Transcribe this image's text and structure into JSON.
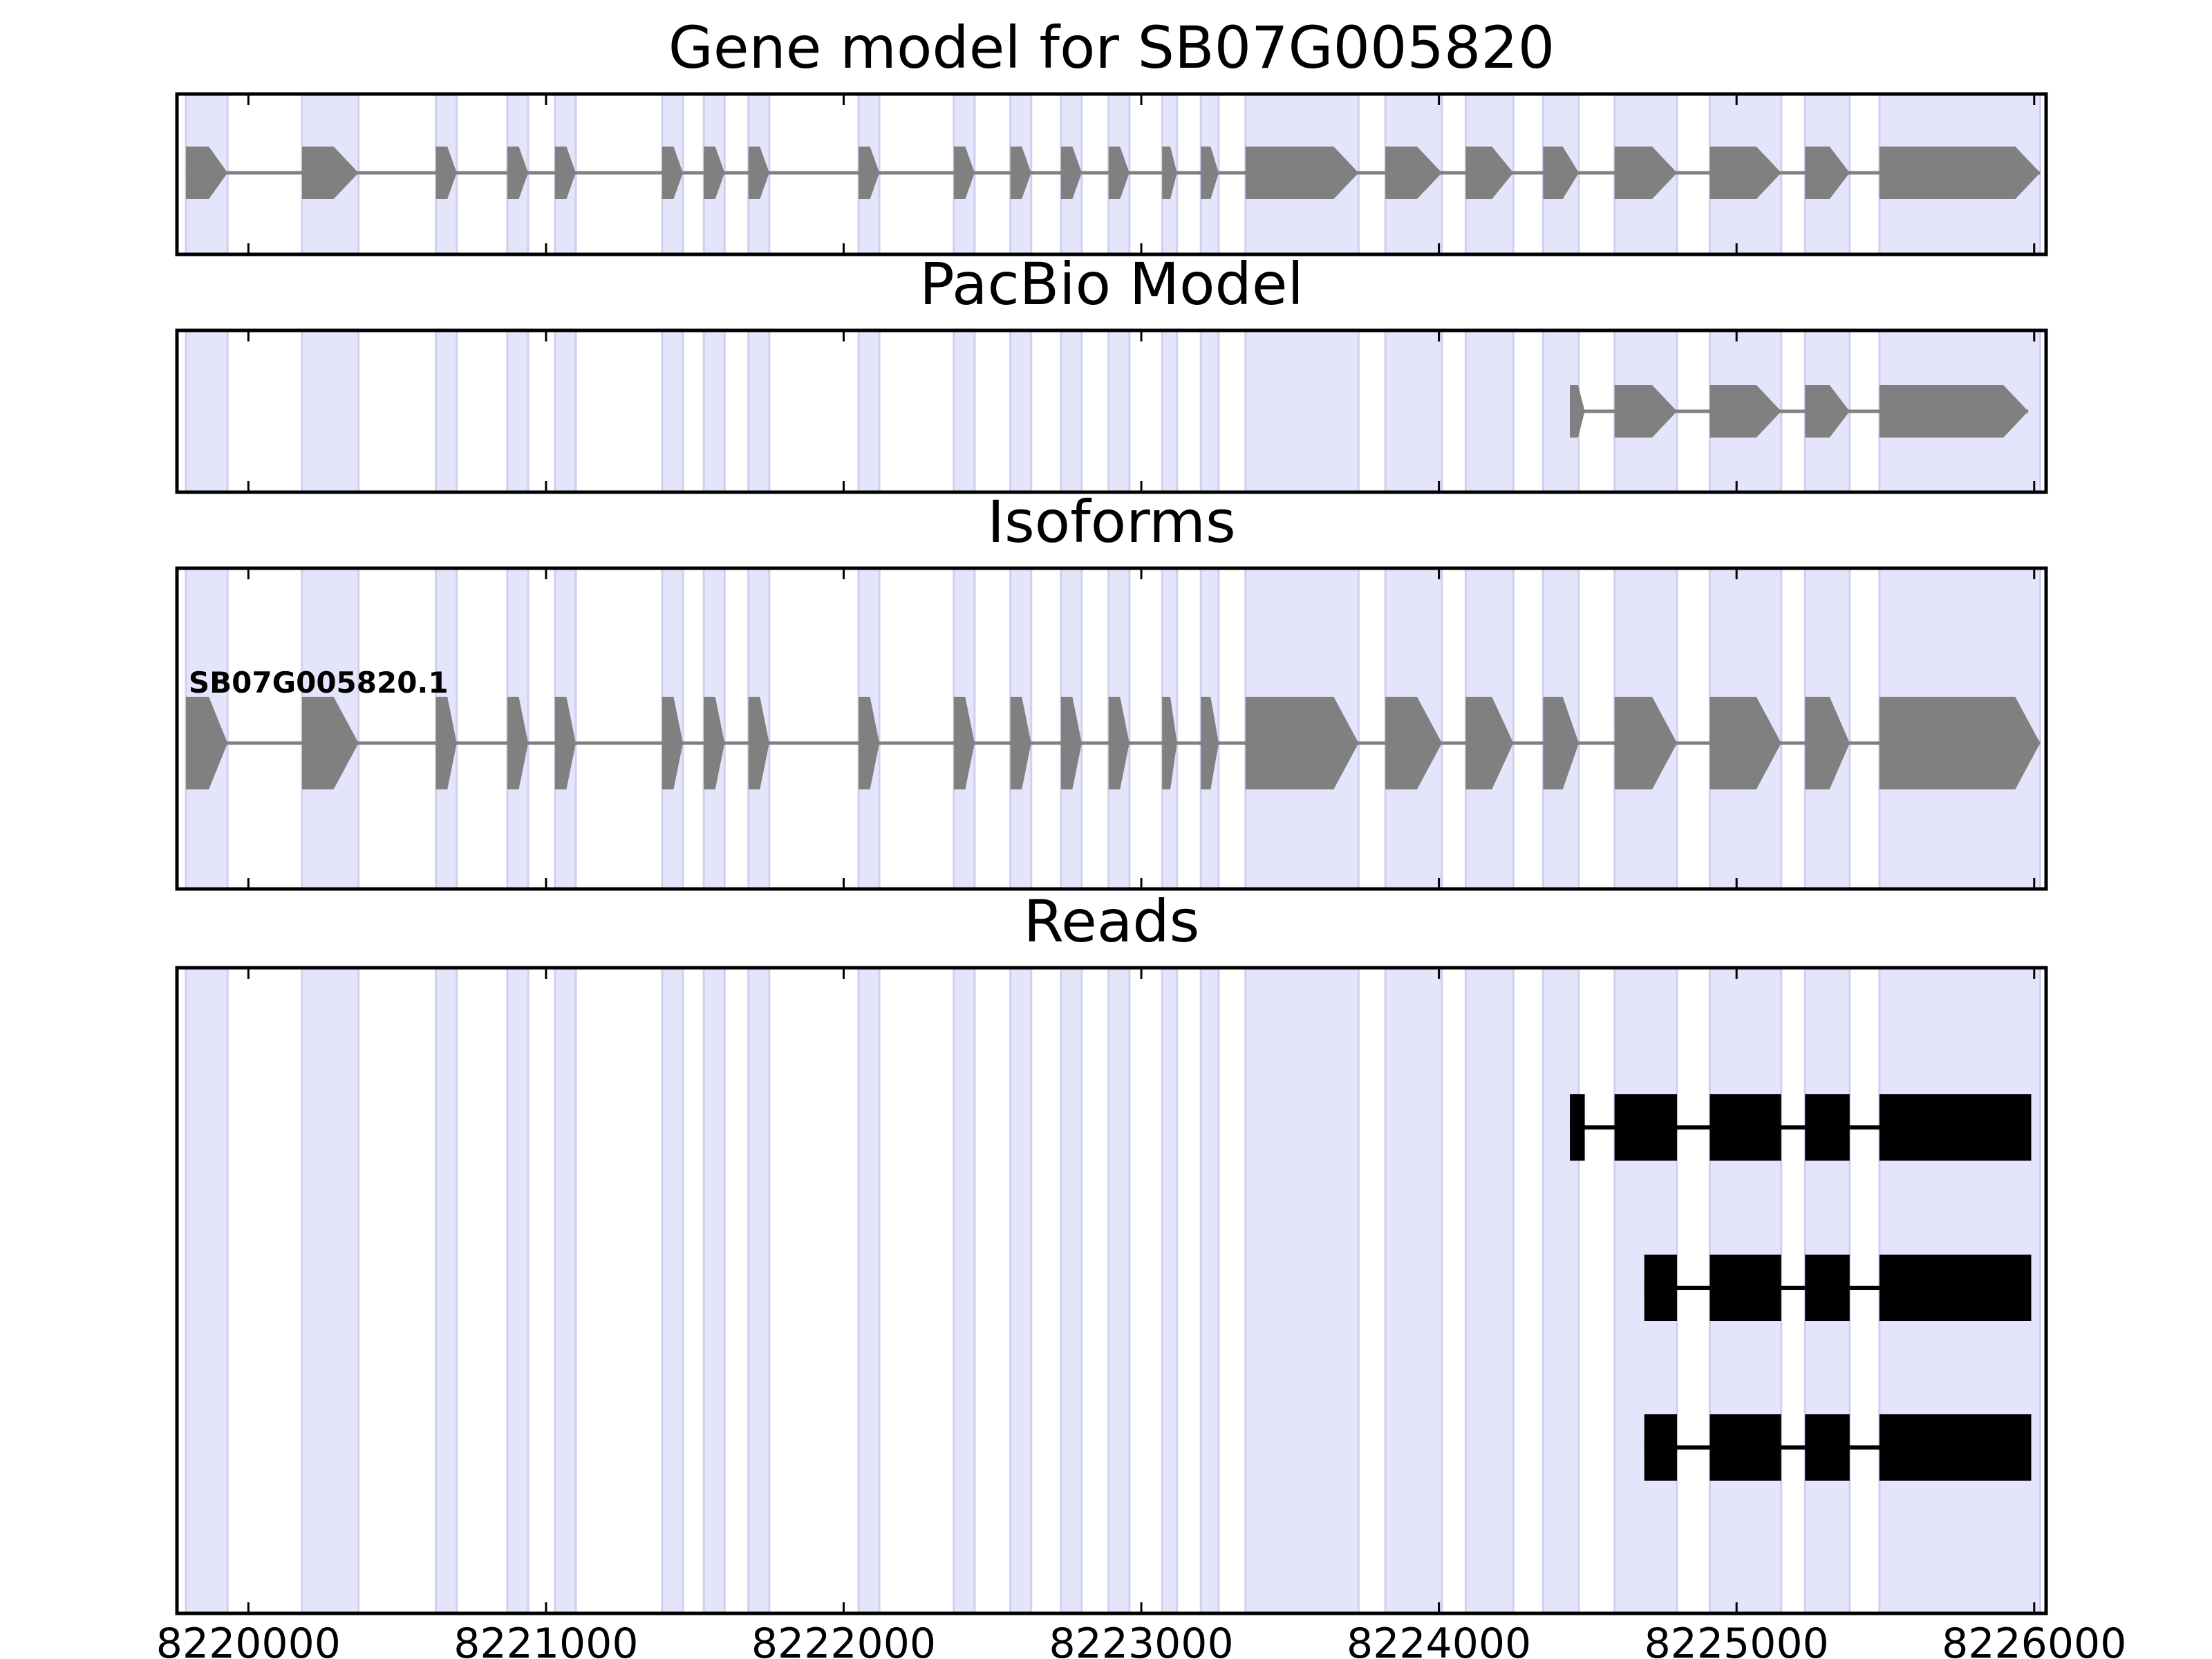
{
  "chart_data": {
    "type": "gene-model-tracks",
    "xlim": [
      8219760,
      8226040
    ],
    "x_ticks": [
      8220000,
      8221000,
      8222000,
      8223000,
      8224000,
      8225000,
      8226000
    ],
    "x_tick_labels": [
      "8220000",
      "8221000",
      "8222000",
      "8223000",
      "8224000",
      "8225000",
      "8226000"
    ],
    "colors": {
      "band": "#e4e4fb",
      "band_edge": "#cfd0f0",
      "feature": "#808080",
      "read": "#000000",
      "line": "#808080",
      "axis": "#000000"
    },
    "exon_bands": [
      [
        8219790,
        8219930
      ],
      [
        8220180,
        8220370
      ],
      [
        8220630,
        8220700
      ],
      [
        8220870,
        8220940
      ],
      [
        8221030,
        8221100
      ],
      [
        8221390,
        8221460
      ],
      [
        8221530,
        8221600
      ],
      [
        8221680,
        8221750
      ],
      [
        8222050,
        8222120
      ],
      [
        8222370,
        8222440
      ],
      [
        8222560,
        8222630
      ],
      [
        8222730,
        8222800
      ],
      [
        8222890,
        8222960
      ],
      [
        8223070,
        8223120
      ],
      [
        8223200,
        8223260
      ],
      [
        8223350,
        8223730
      ],
      [
        8223820,
        8224010
      ],
      [
        8224090,
        8224250
      ],
      [
        8224350,
        8224470
      ],
      [
        8224590,
        8224800
      ],
      [
        8224910,
        8225150
      ],
      [
        8225230,
        8225380
      ],
      [
        8225480,
        8226020
      ]
    ],
    "panels": [
      {
        "title": "Gene model for SB07G005820",
        "kind": "gene",
        "features": [
          {
            "label": "",
            "exons": [
              [
                8219790,
                8219930
              ],
              [
                8220180,
                8220370
              ],
              [
                8220630,
                8220700
              ],
              [
                8220870,
                8220940
              ],
              [
                8221030,
                8221100
              ],
              [
                8221390,
                8221460
              ],
              [
                8221530,
                8221600
              ],
              [
                8221680,
                8221750
              ],
              [
                8222050,
                8222120
              ],
              [
                8222370,
                8222440
              ],
              [
                8222560,
                8222630
              ],
              [
                8222730,
                8222800
              ],
              [
                8222890,
                8222960
              ],
              [
                8223070,
                8223120
              ],
              [
                8223200,
                8223260
              ],
              [
                8223350,
                8223730
              ],
              [
                8223820,
                8224010
              ],
              [
                8224090,
                8224250
              ],
              [
                8224350,
                8224470
              ],
              [
                8224590,
                8224800
              ],
              [
                8224910,
                8225150
              ],
              [
                8225230,
                8225380
              ],
              [
                8225480,
                8226020
              ]
            ]
          }
        ]
      },
      {
        "title": "PacBio Model",
        "kind": "gene",
        "features": [
          {
            "label": "",
            "exons": [
              [
                8224440,
                8224490
              ],
              [
                8224590,
                8224800
              ],
              [
                8224910,
                8225150
              ],
              [
                8225230,
                8225380
              ],
              [
                8225480,
                8225980
              ]
            ]
          }
        ]
      },
      {
        "title": "Isoforms",
        "kind": "isoform",
        "features": [
          {
            "label": "SB07G005820.1",
            "exons": [
              [
                8219790,
                8219930
              ],
              [
                8220180,
                8220370
              ],
              [
                8220630,
                8220700
              ],
              [
                8220870,
                8220940
              ],
              [
                8221030,
                8221100
              ],
              [
                8221390,
                8221460
              ],
              [
                8221530,
                8221600
              ],
              [
                8221680,
                8221750
              ],
              [
                8222050,
                8222120
              ],
              [
                8222370,
                8222440
              ],
              [
                8222560,
                8222630
              ],
              [
                8222730,
                8222800
              ],
              [
                8222890,
                8222960
              ],
              [
                8223070,
                8223120
              ],
              [
                8223200,
                8223260
              ],
              [
                8223350,
                8223730
              ],
              [
                8223820,
                8224010
              ],
              [
                8224090,
                8224250
              ],
              [
                8224350,
                8224470
              ],
              [
                8224590,
                8224800
              ],
              [
                8224910,
                8225150
              ],
              [
                8225230,
                8225380
              ],
              [
                8225480,
                8226020
              ]
            ]
          }
        ]
      },
      {
        "title": "Reads",
        "kind": "reads",
        "features": [
          {
            "label": "",
            "exons": [
              [
                8224440,
                8224490
              ],
              [
                8224590,
                8224800
              ],
              [
                8224910,
                8225150
              ],
              [
                8225230,
                8225380
              ],
              [
                8225480,
                8225990
              ]
            ]
          },
          {
            "label": "",
            "exons": [
              [
                8224690,
                8224800
              ],
              [
                8224910,
                8225150
              ],
              [
                8225230,
                8225380
              ],
              [
                8225480,
                8225990
              ]
            ]
          },
          {
            "label": "",
            "exons": [
              [
                8224690,
                8224800
              ],
              [
                8224910,
                8225150
              ],
              [
                8225230,
                8225380
              ],
              [
                8225480,
                8225990
              ]
            ]
          }
        ]
      }
    ]
  }
}
